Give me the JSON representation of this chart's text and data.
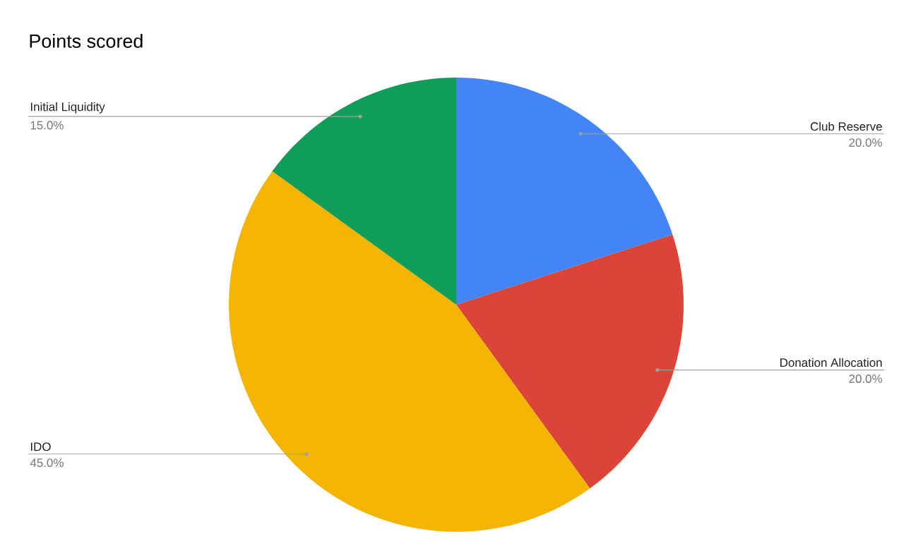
{
  "chart_data": {
    "type": "pie",
    "title": "Points scored",
    "categories": [
      "Club Reserve",
      "Donation Allocation",
      "IDO",
      "Initial Liquidity"
    ],
    "values": [
      20,
      20,
      45,
      15
    ],
    "colors": [
      "#4285f4",
      "#db4437",
      "#f4b400",
      "#0f9d58"
    ],
    "value_labels": [
      "20.0%",
      "20.0%",
      "45.0%",
      "15.0%"
    ]
  }
}
